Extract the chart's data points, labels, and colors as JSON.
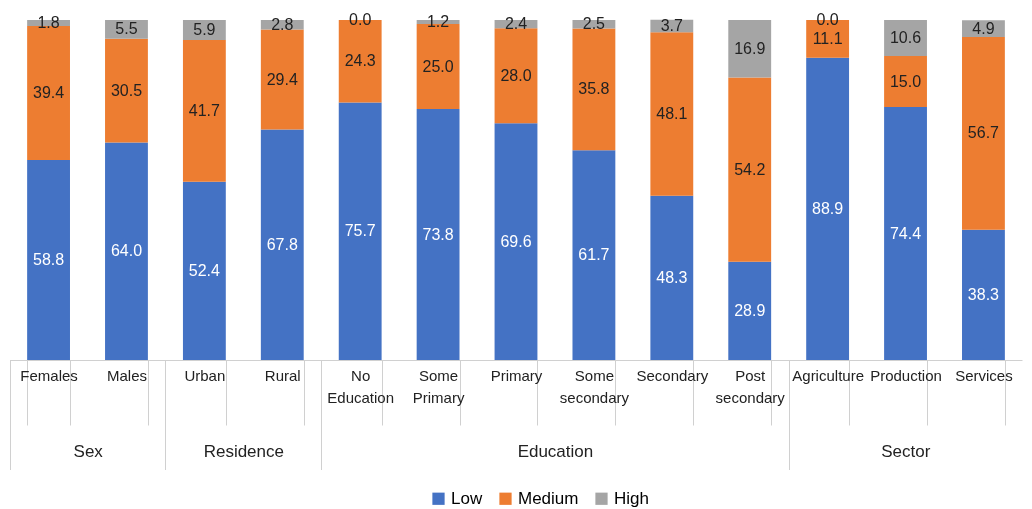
{
  "chart_data": {
    "type": "bar",
    "stacked": true,
    "legend": "bottom",
    "tick_labels": "x",
    "ylim": [
      0,
      100
    ],
    "categories": [
      "Females",
      "Males",
      "Urban",
      "Rural",
      "No Education",
      "Some Primary",
      "Primary",
      "Some secondary",
      "Secondary",
      "Post secondary",
      "Agriculture",
      "Production",
      "Services"
    ],
    "annotations": [
      "Sex",
      "Residence",
      "Education",
      "Sector"
    ],
    "series": [
      {
        "name": "Low",
        "color": "#4472c4",
        "values": [
          58.8,
          64.0,
          52.4,
          67.8,
          75.7,
          73.8,
          69.6,
          61.7,
          48.3,
          28.9,
          88.9,
          74.4,
          38.3
        ],
        "value_labels": [
          "58.8",
          "64.0",
          "52.4",
          "67.8",
          "75.7",
          "73.8",
          "69.6",
          "61.7",
          "48.3",
          "28.9",
          "88.9",
          "74.4",
          "38.3"
        ]
      },
      {
        "name": "Medium",
        "color": "#ed7d31",
        "values": [
          39.4,
          30.5,
          41.7,
          29.4,
          24.3,
          25.0,
          28.0,
          35.8,
          48.1,
          54.2,
          11.1,
          15.0,
          56.7
        ],
        "value_labels": [
          "39.4",
          "30.5",
          "41.7",
          "29.4",
          "24.3",
          "25.0",
          "28.0",
          "35.8",
          "48.1",
          "54.2",
          "11.1",
          "15.0",
          "56.7"
        ]
      },
      {
        "name": "High",
        "color": "#a5a5a5",
        "values": [
          1.8,
          5.5,
          5.9,
          2.8,
          0.0,
          1.2,
          2.4,
          2.5,
          3.7,
          16.9,
          0.0,
          10.6,
          4.9
        ],
        "value_labels": [
          "1.8",
          "5.5",
          "5.9",
          "2.8",
          "0.0",
          "1.2",
          "2.4",
          "2.5",
          "3.7",
          "16.9",
          "0.0",
          "10.6",
          "4.9"
        ]
      }
    ]
  }
}
